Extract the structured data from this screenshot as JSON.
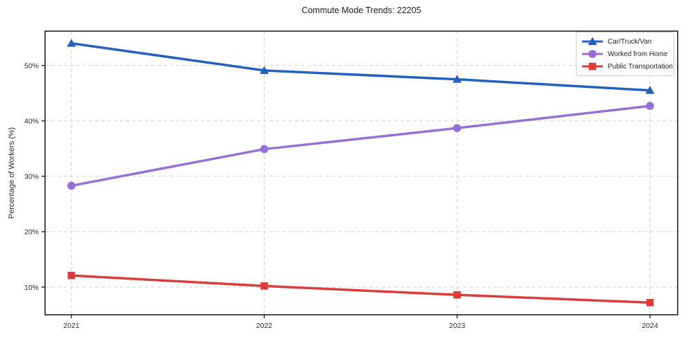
{
  "chart_data": {
    "type": "line",
    "title": "Commute Mode Trends: 22205",
    "ylabel": "Percentage of Workers (%)",
    "xlabel": "",
    "categories": [
      "2021",
      "2022",
      "2023",
      "2024"
    ],
    "series": [
      {
        "name": "Car/Truck/Van",
        "color": "#2460bf",
        "marker": "triangle",
        "values": [
          54.0,
          49.1,
          47.5,
          45.5
        ]
      },
      {
        "name": "Worked from Home",
        "color": "#9a6ed8",
        "marker": "circle",
        "values": [
          28.3,
          34.9,
          38.7,
          42.7
        ]
      },
      {
        "name": "Public Transportation",
        "color": "#dd3c3c",
        "marker": "square",
        "values": [
          12.1,
          10.2,
          8.6,
          7.2
        ]
      }
    ],
    "yticks": [
      {
        "value": 10,
        "label": "10%"
      },
      {
        "value": 20,
        "label": "20%"
      },
      {
        "value": 30,
        "label": "30%"
      },
      {
        "value": 40,
        "label": "40%"
      },
      {
        "value": 50,
        "label": "50%"
      }
    ],
    "ylim": [
      5,
      56.2
    ],
    "grid": true,
    "grid_style": "dashed",
    "legend_position": "upper right",
    "colors": {
      "grid": "#d2d2d2",
      "axis": "#1f1f1f",
      "text": "#2b2b2b",
      "background": "#ffffff"
    }
  }
}
